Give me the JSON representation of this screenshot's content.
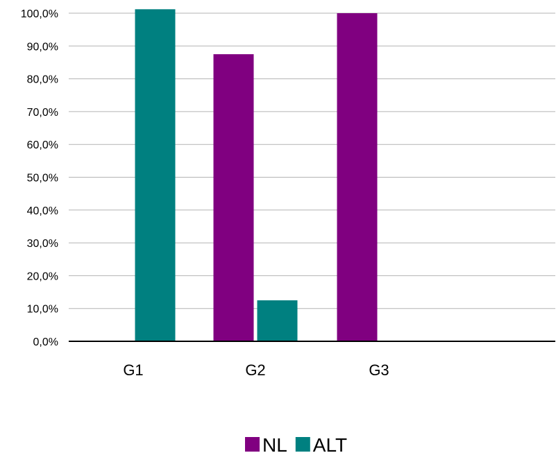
{
  "chart_data": {
    "type": "bar",
    "categories": [
      "G1",
      "G2",
      "G3"
    ],
    "series": [
      {
        "name": "NL",
        "color": "#800080",
        "values": [
          0,
          87.5,
          100
        ]
      },
      {
        "name": "ALT",
        "color": "#008080",
        "values": [
          101.2,
          12.5,
          0
        ]
      }
    ],
    "y_ticks": [
      "0,0%",
      "10,0%",
      "20,0%",
      "30,0%",
      "40,0%",
      "50,0%",
      "60,0%",
      "70,0%",
      "80,0%",
      "90,0%",
      "100,0%"
    ],
    "ylim": [
      0,
      100
    ],
    "grid": true,
    "legend_position": "bottom"
  }
}
